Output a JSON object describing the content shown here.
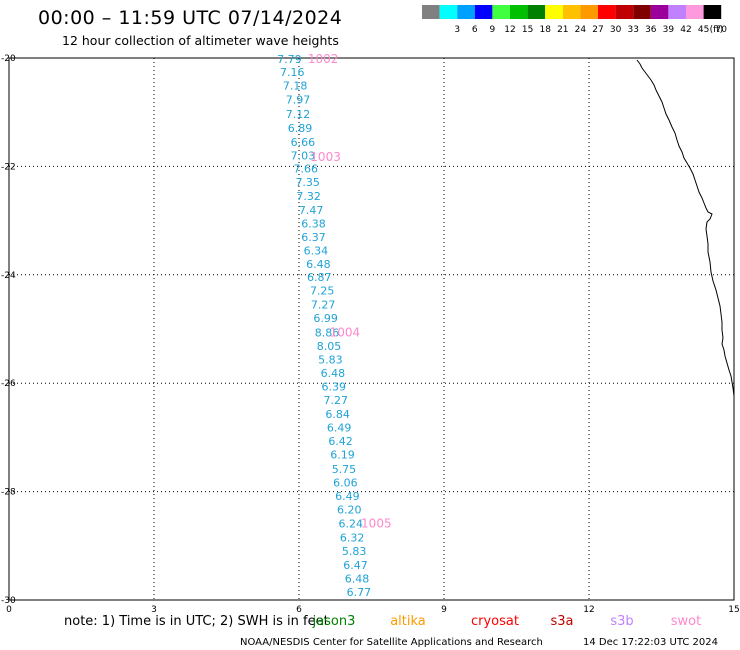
{
  "header": {
    "title": "00:00 – 11:59 UTC 07/14/2024",
    "subtitle": "12 hour collection of altimeter wave heights"
  },
  "legend": {
    "unit": "(ft)",
    "bins": [
      {
        "color": "#808080",
        "label": ""
      },
      {
        "color": "#00ffff",
        "label": "3"
      },
      {
        "color": "#00a0ff",
        "label": "6"
      },
      {
        "color": "#0000ff",
        "label": "9"
      },
      {
        "color": "#40ff40",
        "label": "12"
      },
      {
        "color": "#00c000",
        "label": "15"
      },
      {
        "color": "#008000",
        "label": "18"
      },
      {
        "color": "#ffff00",
        "label": "21"
      },
      {
        "color": "#ffc000",
        "label": "24"
      },
      {
        "color": "#ff9900",
        "label": "27"
      },
      {
        "color": "#ff0000",
        "label": "30"
      },
      {
        "color": "#c00000",
        "label": "33"
      },
      {
        "color": "#800000",
        "label": "36"
      },
      {
        "color": "#9c009c",
        "label": "39"
      },
      {
        "color": "#c080ff",
        "label": "42"
      },
      {
        "color": "#ff99dd",
        "label": "45"
      },
      {
        "color": "#000000",
        "label": "70"
      }
    ]
  },
  "map": {
    "x_ticks": [
      "0",
      "3",
      "6",
      "9",
      "12",
      "15"
    ],
    "y_ticks": [
      "-20",
      "-22",
      "-24",
      "-26",
      "-28",
      "-30"
    ],
    "x_range": [
      0,
      15
    ],
    "y_range": [
      -20,
      -30
    ]
  },
  "track": {
    "color": "#1fa3d6",
    "times_color": "#ff88cc",
    "points": [
      {
        "lon": 5.8,
        "lat": -20.02,
        "swh": "7.79"
      },
      {
        "lon": 5.86,
        "lat": -20.26,
        "swh": "7.16"
      },
      {
        "lon": 5.92,
        "lat": -20.51,
        "swh": "7.18"
      },
      {
        "lon": 5.98,
        "lat": -20.77,
        "swh": "7.97"
      },
      {
        "lon": 5.98,
        "lat": -21.03,
        "swh": "7.12"
      },
      {
        "lon": 6.02,
        "lat": -21.29,
        "swh": "6.89"
      },
      {
        "lon": 6.08,
        "lat": -21.55,
        "swh": "6.66"
      },
      {
        "lon": 6.08,
        "lat": -21.8,
        "swh": "7.03"
      },
      {
        "lon": 6.14,
        "lat": -22.04,
        "swh": "7.66"
      },
      {
        "lon": 6.18,
        "lat": -22.29,
        "swh": "7.35"
      },
      {
        "lon": 6.2,
        "lat": -22.55,
        "swh": "7.32"
      },
      {
        "lon": 6.25,
        "lat": -22.8,
        "swh": "7.47"
      },
      {
        "lon": 6.3,
        "lat": -23.05,
        "swh": "6.38"
      },
      {
        "lon": 6.3,
        "lat": -23.3,
        "swh": "6.37"
      },
      {
        "lon": 6.35,
        "lat": -23.55,
        "swh": "6.34"
      },
      {
        "lon": 6.4,
        "lat": -23.8,
        "swh": "6.48"
      },
      {
        "lon": 6.42,
        "lat": -24.04,
        "swh": "6.87"
      },
      {
        "lon": 6.48,
        "lat": -24.29,
        "swh": "7.25"
      },
      {
        "lon": 6.5,
        "lat": -24.55,
        "swh": "7.27"
      },
      {
        "lon": 6.55,
        "lat": -24.8,
        "swh": "6.99"
      },
      {
        "lon": 6.58,
        "lat": -25.06,
        "swh": "8.86"
      },
      {
        "lon": 6.62,
        "lat": -25.31,
        "swh": "8.05"
      },
      {
        "lon": 6.65,
        "lat": -25.56,
        "swh": "5.83"
      },
      {
        "lon": 6.7,
        "lat": -25.81,
        "swh": "6.48"
      },
      {
        "lon": 6.72,
        "lat": -26.06,
        "swh": "6.39"
      },
      {
        "lon": 6.76,
        "lat": -26.31,
        "swh": "7.27"
      },
      {
        "lon": 6.8,
        "lat": -26.57,
        "swh": "6.84"
      },
      {
        "lon": 6.83,
        "lat": -26.82,
        "swh": "6.49"
      },
      {
        "lon": 6.86,
        "lat": -27.07,
        "swh": "6.42"
      },
      {
        "lon": 6.9,
        "lat": -27.32,
        "swh": "6.19"
      },
      {
        "lon": 6.93,
        "lat": -27.58,
        "swh": "5.75"
      },
      {
        "lon": 6.96,
        "lat": -27.83,
        "swh": "6.06"
      },
      {
        "lon": 7.0,
        "lat": -28.08,
        "swh": "6.49"
      },
      {
        "lon": 7.04,
        "lat": -28.33,
        "swh": "6.20"
      },
      {
        "lon": 7.07,
        "lat": -28.59,
        "swh": "6.24"
      },
      {
        "lon": 7.1,
        "lat": -28.85,
        "swh": "6.32"
      },
      {
        "lon": 7.14,
        "lat": -29.1,
        "swh": "5.83"
      },
      {
        "lon": 7.17,
        "lat": -29.35,
        "swh": "6.47"
      },
      {
        "lon": 7.2,
        "lat": -29.6,
        "swh": "6.48"
      },
      {
        "lon": 7.24,
        "lat": -29.85,
        "swh": "6.77"
      }
    ],
    "time_labels": [
      {
        "lon": 6.5,
        "lat": -20.02,
        "text": "1002"
      },
      {
        "lon": 6.55,
        "lat": -21.83,
        "text": "1003"
      },
      {
        "lon": 6.95,
        "lat": -25.06,
        "text": "1004"
      },
      {
        "lon": 7.6,
        "lat": -28.59,
        "text": "1005"
      }
    ]
  },
  "footer": {
    "note": "note:  1) Time is in UTC;  2) SWH is in feet",
    "satellites": [
      {
        "name": "jason3",
        "color": "#008000"
      },
      {
        "name": "altika",
        "color": "#ff9900"
      },
      {
        "name": "cryosat",
        "color": "#ff0000"
      },
      {
        "name": "s3a",
        "color": "#c00000"
      },
      {
        "name": "s3b",
        "color": "#c080ff"
      },
      {
        "name": "swot",
        "color": "#ff88cc"
      }
    ],
    "credit": "NOAA/NESDIS Center for Satellite Applications and Research",
    "timestamp": "14 Dec 17:22:03 UTC 2024"
  }
}
